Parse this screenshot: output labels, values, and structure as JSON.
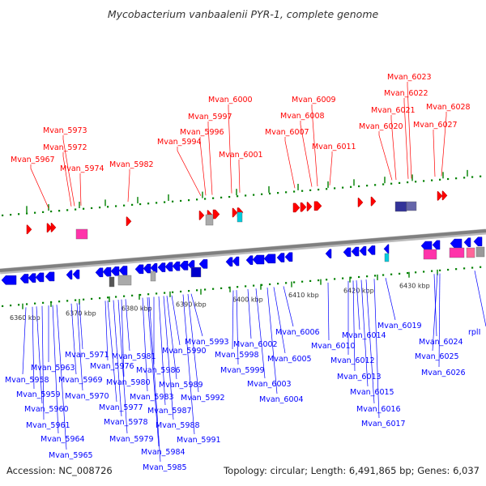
{
  "title": "Mycobacterium vanbaalenii PYR-1, complete genome",
  "footer": {
    "accession": "Accession: NC_008726",
    "summary": "Topology: circular; Length: 6,491,865 bp; Genes: 6,037"
  },
  "colors": {
    "forward_gene": "#ff0000",
    "reverse_gene": "#0000ff",
    "backbone": "#808080",
    "tick": "#008000",
    "rna_pink": "#ff33aa",
    "gray_feature": "#aaaaaa",
    "cyan_feature": "#00ccdd",
    "navy_feature": "#333399"
  },
  "scale_labels": [
    "6360 kbp",
    "6370 kbp",
    "6380 kbp",
    "6390 kbp",
    "6400 kbp",
    "6410 kbp",
    "6420 kbp",
    "6430 kbp"
  ],
  "top_labels": [
    "Mvan_5967",
    "Mvan_5973",
    "Mvan_5972",
    "Mvan_5974",
    "Mvan_5982",
    "Mvan_5994",
    "Mvan_5996",
    "Mvan_5997",
    "Mvan_6000",
    "Mvan_6001",
    "Mvan_6007",
    "Mvan_6008",
    "Mvan_6009",
    "Mvan_6011",
    "Mvan_6020",
    "Mvan_6021",
    "Mvan_6022",
    "Mvan_6023",
    "Mvan_6027",
    "Mvan_6028"
  ],
  "bottom_labels": [
    "Mvan_5958",
    "Mvan_5959",
    "Mvan_5960",
    "Mvan_5961",
    "Mvan_5963",
    "Mvan_5964",
    "Mvan_5965",
    "Mvan_5969",
    "Mvan_5970",
    "Mvan_5971",
    "Mvan_5976",
    "Mvan_5977",
    "Mvan_5978",
    "Mvan_5979",
    "Mvan_5980",
    "Mvan_5981",
    "Mvan_5983",
    "Mvan_5984",
    "Mvan_5985",
    "Mvan_5986",
    "Mvan_5987",
    "Mvan_5988",
    "Mvan_5989",
    "Mvan_5990",
    "Mvan_5991",
    "Mvan_5992",
    "Mvan_5993",
    "Mvan_5998",
    "Mvan_5999",
    "Mvan_6002",
    "Mvan_6003",
    "Mvan_6004",
    "Mvan_6005",
    "Mvan_6006",
    "Mvan_6010",
    "Mvan_6012",
    "Mvan_6013",
    "Mvan_6014",
    "Mvan_6015",
    "Mvan_6016",
    "Mvan_6017",
    "Mvan_6019",
    "Mvan_6024",
    "Mvan_6025",
    "Mvan_6026",
    "rplI"
  ]
}
